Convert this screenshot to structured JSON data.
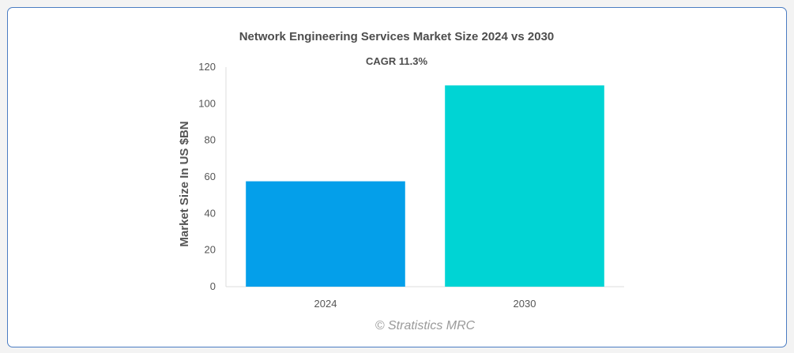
{
  "colors": {
    "series_2024": "#049fea",
    "series_2030": "#00d4d4",
    "axis_text": "#555555",
    "title_text": "#4d4d4d",
    "watermark": "#9a9a9a",
    "frame_border": "#4a7cc2"
  },
  "chart_data": {
    "type": "bar",
    "title": "Network Engineering Services Market Size 2024 vs 2030",
    "subtitle": "CAGR 11.3%",
    "xlabel": "",
    "ylabel": "Market Size In US $BN",
    "categories": [
      "2024",
      "2030"
    ],
    "values": [
      57.6,
      110
    ],
    "ylim": [
      0,
      120
    ],
    "yticks": [
      0,
      20,
      40,
      60,
      80,
      100,
      120
    ],
    "grid": false,
    "legend": "none",
    "watermark": "© Stratistics MRC"
  }
}
